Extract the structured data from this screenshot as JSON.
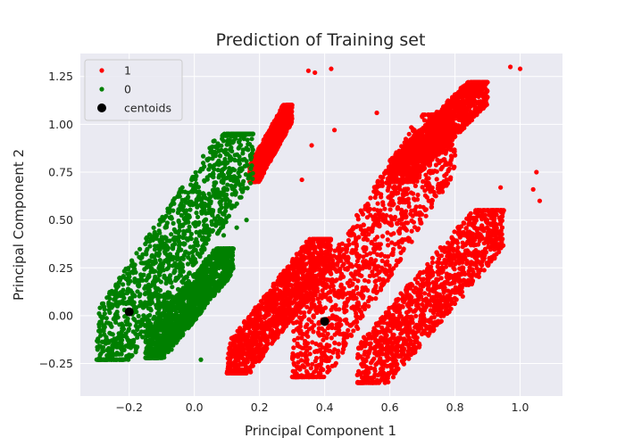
{
  "chart_data": {
    "type": "scatter",
    "title": "Prediction of Training set",
    "xlabel": "Principal Component 1",
    "ylabel": "Principal Component 2",
    "xlim": [
      -0.35,
      1.13
    ],
    "ylim": [
      -0.42,
      1.37
    ],
    "xticks": [
      -0.2,
      0.0,
      0.2,
      0.4,
      0.6,
      0.8,
      1.0
    ],
    "xtick_labels": [
      "−0.2",
      "0.0",
      "0.2",
      "0.4",
      "0.6",
      "0.8",
      "1.0"
    ],
    "yticks": [
      -0.25,
      0.0,
      0.25,
      0.5,
      0.75,
      1.0,
      1.25
    ],
    "ytick_labels": [
      "−0.25",
      "0.00",
      "0.25",
      "0.50",
      "0.75",
      "1.00",
      "1.25"
    ],
    "grid": true,
    "legend_position": "top-left",
    "background_color": "#eaeaf2",
    "series": [
      {
        "name": "1",
        "color": "#ff0000",
        "marker": "dot",
        "clusters": [
          {
            "x_range": [
              0.1,
              0.42
            ],
            "y_range": [
              -0.3,
              0.4
            ]
          },
          {
            "x_range": [
              0.3,
              0.8
            ],
            "y_range": [
              -0.32,
              1.05
            ]
          },
          {
            "x_range": [
              0.5,
              0.95
            ],
            "y_range": [
              -0.35,
              0.55
            ]
          },
          {
            "x_range": [
              0.6,
              0.9
            ],
            "y_range": [
              0.7,
              1.22
            ]
          },
          {
            "x_range": [
              0.17,
              0.3
            ],
            "y_range": [
              0.7,
              1.1
            ]
          }
        ],
        "outliers": [
          [
            0.35,
            1.28
          ],
          [
            0.37,
            1.27
          ],
          [
            0.42,
            1.29
          ],
          [
            0.43,
            0.97
          ],
          [
            0.56,
            1.06
          ],
          [
            0.97,
            1.3
          ],
          [
            1.0,
            1.29
          ],
          [
            1.05,
            0.75
          ],
          [
            0.88,
            0.55
          ],
          [
            0.94,
            0.67
          ],
          [
            1.04,
            0.66
          ],
          [
            1.06,
            0.6
          ],
          [
            0.36,
            0.89
          ],
          [
            0.33,
            0.71
          ]
        ]
      },
      {
        "name": "0",
        "color": "#008000",
        "marker": "dot",
        "clusters": [
          {
            "x_range": [
              -0.3,
              0.18
            ],
            "y_range": [
              -0.23,
              0.95
            ]
          },
          {
            "x_range": [
              -0.15,
              0.12
            ],
            "y_range": [
              -0.22,
              0.35
            ]
          }
        ],
        "outliers": [
          [
            -0.18,
            -0.19
          ],
          [
            0.02,
            -0.23
          ],
          [
            0.09,
            0.42
          ],
          [
            0.13,
            0.46
          ],
          [
            0.16,
            0.5
          ]
        ]
      }
    ],
    "centroids": {
      "name": "centoids",
      "color": "#000000",
      "points": [
        [
          -0.2,
          0.02
        ],
        [
          0.4,
          -0.03
        ]
      ]
    }
  }
}
